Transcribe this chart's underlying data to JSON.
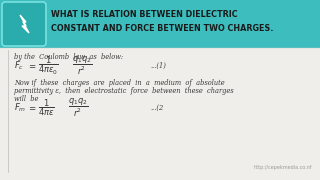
{
  "body_bg": "#f0eeea",
  "header_bg": "#3dbdbd",
  "header_text_line1": "WHAT IS RELATION BETWEEN DIELECTRIC",
  "header_text_line2": "CONSTANT AND FORCE BETWEEN TWO CHARGES.",
  "header_text_color": "#1a1a1a",
  "icon_bg": "#2aacac",
  "icon_outline": "#5dd5d5",
  "text_color": "#3a3a3a",
  "url_text": "http://cepekmedia.co.nf",
  "url_color": "#999999",
  "line1": "by the  Coulomb  law  as  below:",
  "line2a": "Now if  these  charges  are  placed  in  a  medium  of  absolute",
  "line2b": "permittivity ε,  then  electrostatic  force  between  these  charges",
  "line2c": "will  be",
  "eq1_label": "...(1)",
  "eq2_label": "...(2"
}
